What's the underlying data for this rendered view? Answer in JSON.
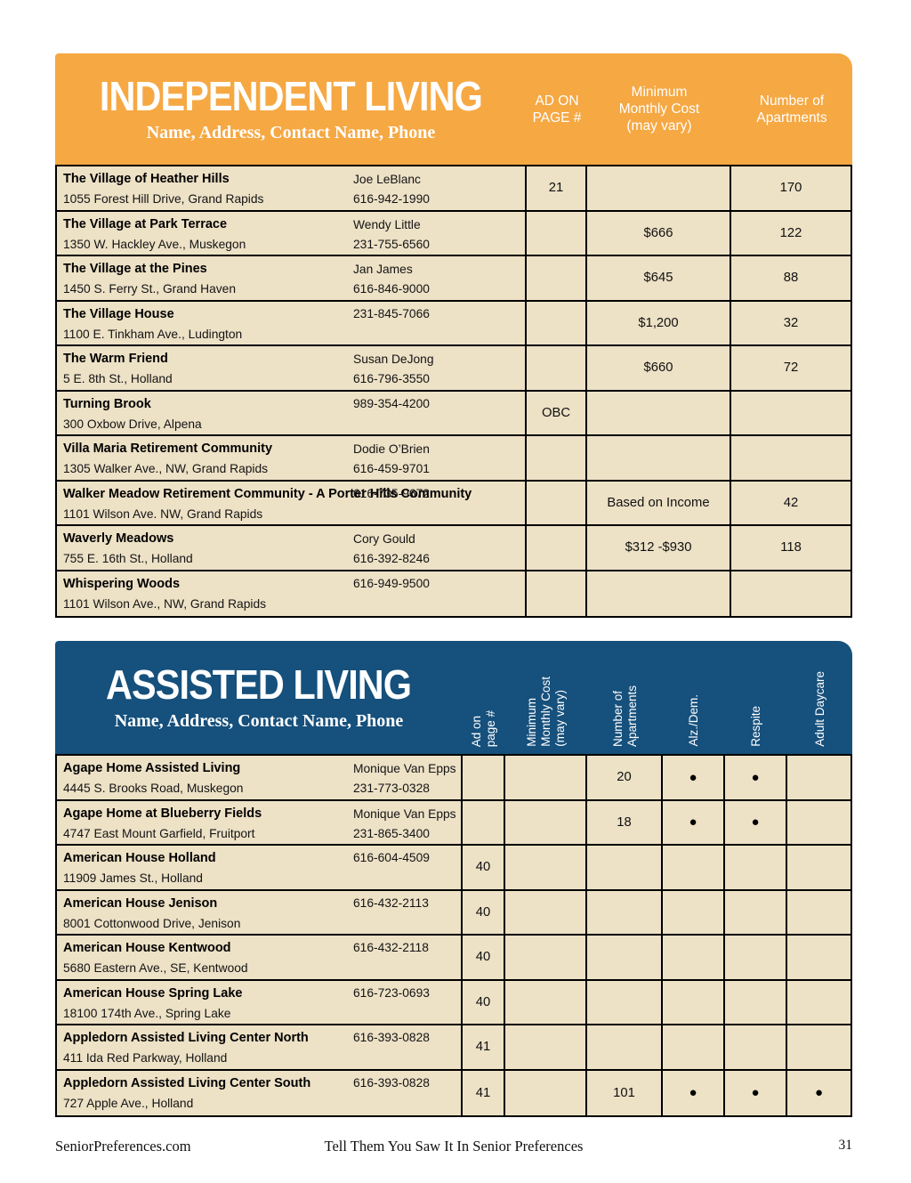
{
  "icons": {
    "feature_dot": "●"
  },
  "colors": {
    "independent_header_bg": "#F6A843",
    "assisted_header_bg": "#16507C",
    "row_bg": "#EDE1C6",
    "border": "#000000",
    "header_text": "#FFFFFF"
  },
  "independent": {
    "title": "INDEPENDENT LIVING",
    "subtitle": "Name, Address, Contact Name, Phone",
    "columns": [
      "AD ON\nPAGE #",
      "Minimum\nMonthly Cost\n(may vary)",
      "Number of\nApartments"
    ],
    "rows": [
      {
        "name": "The Village of Heather Hills",
        "address": "1055 Forest Hill Drive, Grand Rapids",
        "contact": "Joe LeBlanc",
        "phone": "616-942-1990",
        "ad_page": "21",
        "cost": "",
        "apartments": "170"
      },
      {
        "name": "The Village at Park Terrace",
        "address": "1350 W. Hackley Ave., Muskegon",
        "contact": "Wendy Little",
        "phone": "231-755-6560",
        "ad_page": "",
        "cost": "$666",
        "apartments": "122"
      },
      {
        "name": "The Village at the Pines",
        "address": "1450 S. Ferry St., Grand Haven",
        "contact": "Jan James",
        "phone": "616-846-9000",
        "ad_page": "",
        "cost": "$645",
        "apartments": "88"
      },
      {
        "name": "The Village House",
        "address": "1100 E. Tinkham Ave., Ludington",
        "contact": "",
        "phone": "231-845-7066",
        "ad_page": "",
        "cost": "$1,200",
        "apartments": "32"
      },
      {
        "name": "The Warm Friend",
        "address": "5 E. 8th St., Holland",
        "contact": "Susan DeJong",
        "phone": "616-796-3550",
        "ad_page": "",
        "cost": "$660",
        "apartments": "72"
      },
      {
        "name": "Turning Brook",
        "address": "300 Oxbow Drive, Alpena",
        "contact": "",
        "phone": "989-354-4200",
        "ad_page": "OBC",
        "cost": "",
        "apartments": ""
      },
      {
        "name": "Villa Maria Retirement Community",
        "address": "1305 Walker Ave., NW, Grand Rapids",
        "contact": "Dodie O’Brien",
        "phone": "616-459-9701",
        "ad_page": "",
        "cost": "",
        "apartments": ""
      },
      {
        "name": "Walker Meadow Retirement Community - A Porter Hills Community",
        "address": "1101 Wilson Ave. NW, Grand Rapids",
        "contact": "",
        "phone": "616-735-9672",
        "ad_page": "",
        "cost": "Based on Income",
        "apartments": "42"
      },
      {
        "name": "Waverly Meadows",
        "address": "755 E. 16th St., Holland",
        "contact": "Cory Gould",
        "phone": "616-392-8246",
        "ad_page": "",
        "cost": "$312 -$930",
        "apartments": "118"
      },
      {
        "name": "Whispering Woods",
        "address": "1101 Wilson Ave., NW, Grand Rapids",
        "contact": "",
        "phone": "616-949-9500",
        "ad_page": "",
        "cost": "",
        "apartments": ""
      }
    ]
  },
  "assisted": {
    "title": "ASSISTED LIVING",
    "subtitle": "Name, Address, Contact Name, Phone",
    "columns": [
      "Ad on\npage #",
      "Minimum\nMonthly Cost\n(may vary)",
      "Number of\nApartments",
      "Alz./Dem.",
      "Respite",
      "Adult Daycare"
    ],
    "rows": [
      {
        "name": "Agape Home Assisted Living",
        "address": "4445 S. Brooks Road, Muskegon",
        "contact": "Monique Van Epps",
        "phone": "231-773-0328",
        "ad_page": "",
        "cost": "",
        "apartments": "20",
        "alz_dem": true,
        "respite": true,
        "adult_daycare": false
      },
      {
        "name": "Agape Home at Blueberry Fields",
        "address": "4747 East Mount Garfield, Fruitport",
        "contact": "Monique Van Epps",
        "phone": "231-865-3400",
        "ad_page": "",
        "cost": "",
        "apartments": "18",
        "alz_dem": true,
        "respite": true,
        "adult_daycare": false
      },
      {
        "name": "American House Holland",
        "address": "11909 James St., Holland",
        "contact": "",
        "phone": "616-604-4509",
        "ad_page": "40",
        "cost": "",
        "apartments": "",
        "alz_dem": false,
        "respite": false,
        "adult_daycare": false
      },
      {
        "name": "American House Jenison",
        "address": "8001 Cottonwood Drive, Jenison",
        "contact": "",
        "phone": "616-432-2113",
        "ad_page": "40",
        "cost": "",
        "apartments": "",
        "alz_dem": false,
        "respite": false,
        "adult_daycare": false
      },
      {
        "name": "American House Kentwood",
        "address": "5680 Eastern Ave., SE, Kentwood",
        "contact": "",
        "phone": "616-432-2118",
        "ad_page": "40",
        "cost": "",
        "apartments": "",
        "alz_dem": false,
        "respite": false,
        "adult_daycare": false
      },
      {
        "name": "American House Spring Lake",
        "address": "18100 174th Ave., Spring Lake",
        "contact": "",
        "phone": "616-723-0693",
        "ad_page": "40",
        "cost": "",
        "apartments": "",
        "alz_dem": false,
        "respite": false,
        "adult_daycare": false
      },
      {
        "name": "Appledorn Assisted Living Center North",
        "address": "411 Ida Red Parkway, Holland",
        "contact": "",
        "phone": "616-393-0828",
        "ad_page": "41",
        "cost": "",
        "apartments": "",
        "alz_dem": false,
        "respite": false,
        "adult_daycare": false
      },
      {
        "name": "Appledorn Assisted Living Center South",
        "address": "727 Apple Ave., Holland",
        "contact": "",
        "phone": "616-393-0828",
        "ad_page": "41",
        "cost": "",
        "apartments": "101",
        "alz_dem": true,
        "respite": true,
        "adult_daycare": true
      }
    ]
  },
  "footer": {
    "left": "SeniorPreferences.com",
    "center": "Tell Them You Saw It In Senior Preferences",
    "page_number": "31"
  }
}
